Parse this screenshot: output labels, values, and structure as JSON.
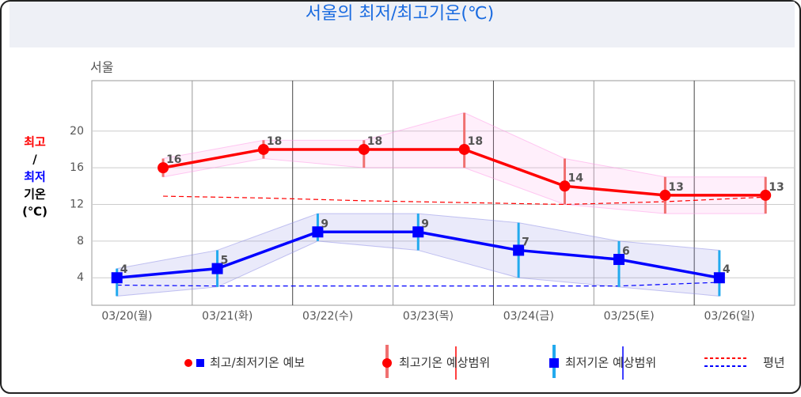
{
  "chart_data": {
    "type": "line",
    "title": "서울의 최저/최고기온(℃)",
    "subtitle": "서울",
    "y_label": [
      "최고",
      "/",
      "최저",
      "기온",
      "(℃)"
    ],
    "categories": [
      "03/20(월)",
      "03/21(화)",
      "03/22(수)",
      "03/23(목)",
      "03/24(금)",
      "03/25(토)",
      "03/26(일)"
    ],
    "ylim": [
      1,
      25.5
    ],
    "yticks": [
      4,
      8,
      12,
      16,
      20
    ],
    "grid": true,
    "series": [
      {
        "color": "#ff0000",
        "marker": "circle",
        "values": [
          16,
          18,
          18,
          18,
          14,
          13,
          13
        ],
        "low": [
          15,
          17,
          16,
          16,
          12,
          11,
          11
        ],
        "high": [
          17,
          19,
          19,
          22,
          17,
          15,
          15
        ],
        "normal": [
          12.9,
          12.7,
          12.4,
          12.2,
          12.0,
          12.3,
          12.8
        ]
      },
      {
        "color": "#0000ff",
        "marker": "square",
        "values": [
          4,
          5,
          9,
          9,
          7,
          6,
          4
        ],
        "low": [
          2,
          3,
          8,
          7,
          4,
          3,
          2
        ],
        "high": [
          5,
          7,
          11,
          11,
          10,
          8,
          7
        ],
        "normal": [
          3.2,
          3.1,
          3.1,
          3.1,
          3.1,
          3.1,
          3.5
        ]
      }
    ],
    "legend": [
      "최고/최저기온 예보",
      "최고기온 예상범위",
      "최저기온 예상범위",
      "평년"
    ]
  }
}
